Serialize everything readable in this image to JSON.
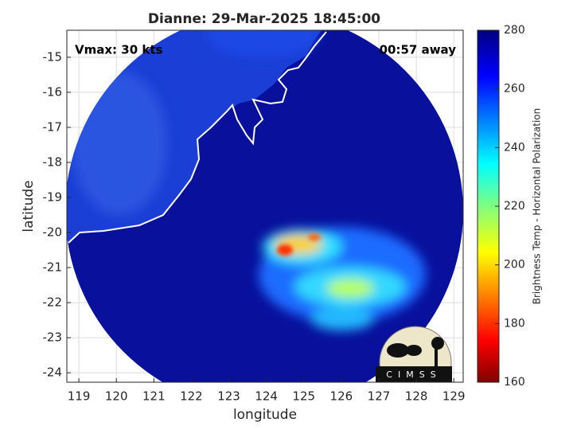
{
  "title": "Dianne: 29-Mar-2025 18:45:00",
  "annotations": {
    "vmax": "Vmax: 30 kts",
    "time_away": "00:57 away"
  },
  "x_axis": {
    "label": "longitude",
    "lim": [
      118.68,
      129.25
    ],
    "ticks": [
      119,
      120,
      121,
      122,
      123,
      124,
      125,
      126,
      127,
      128,
      129
    ]
  },
  "y_axis": {
    "label": "latitude",
    "lim": [
      -24.27,
      -14.23
    ],
    "ticks": [
      -15,
      -16,
      -17,
      -18,
      -19,
      -20,
      -21,
      -22,
      -23,
      -24
    ]
  },
  "colorbar": {
    "label": "Brightness Temp - Horizontal Polarization",
    "lim": [
      160,
      280
    ],
    "ticks": [
      160,
      180,
      200,
      220,
      240,
      260,
      280
    ]
  },
  "logo": "CIMSS"
}
